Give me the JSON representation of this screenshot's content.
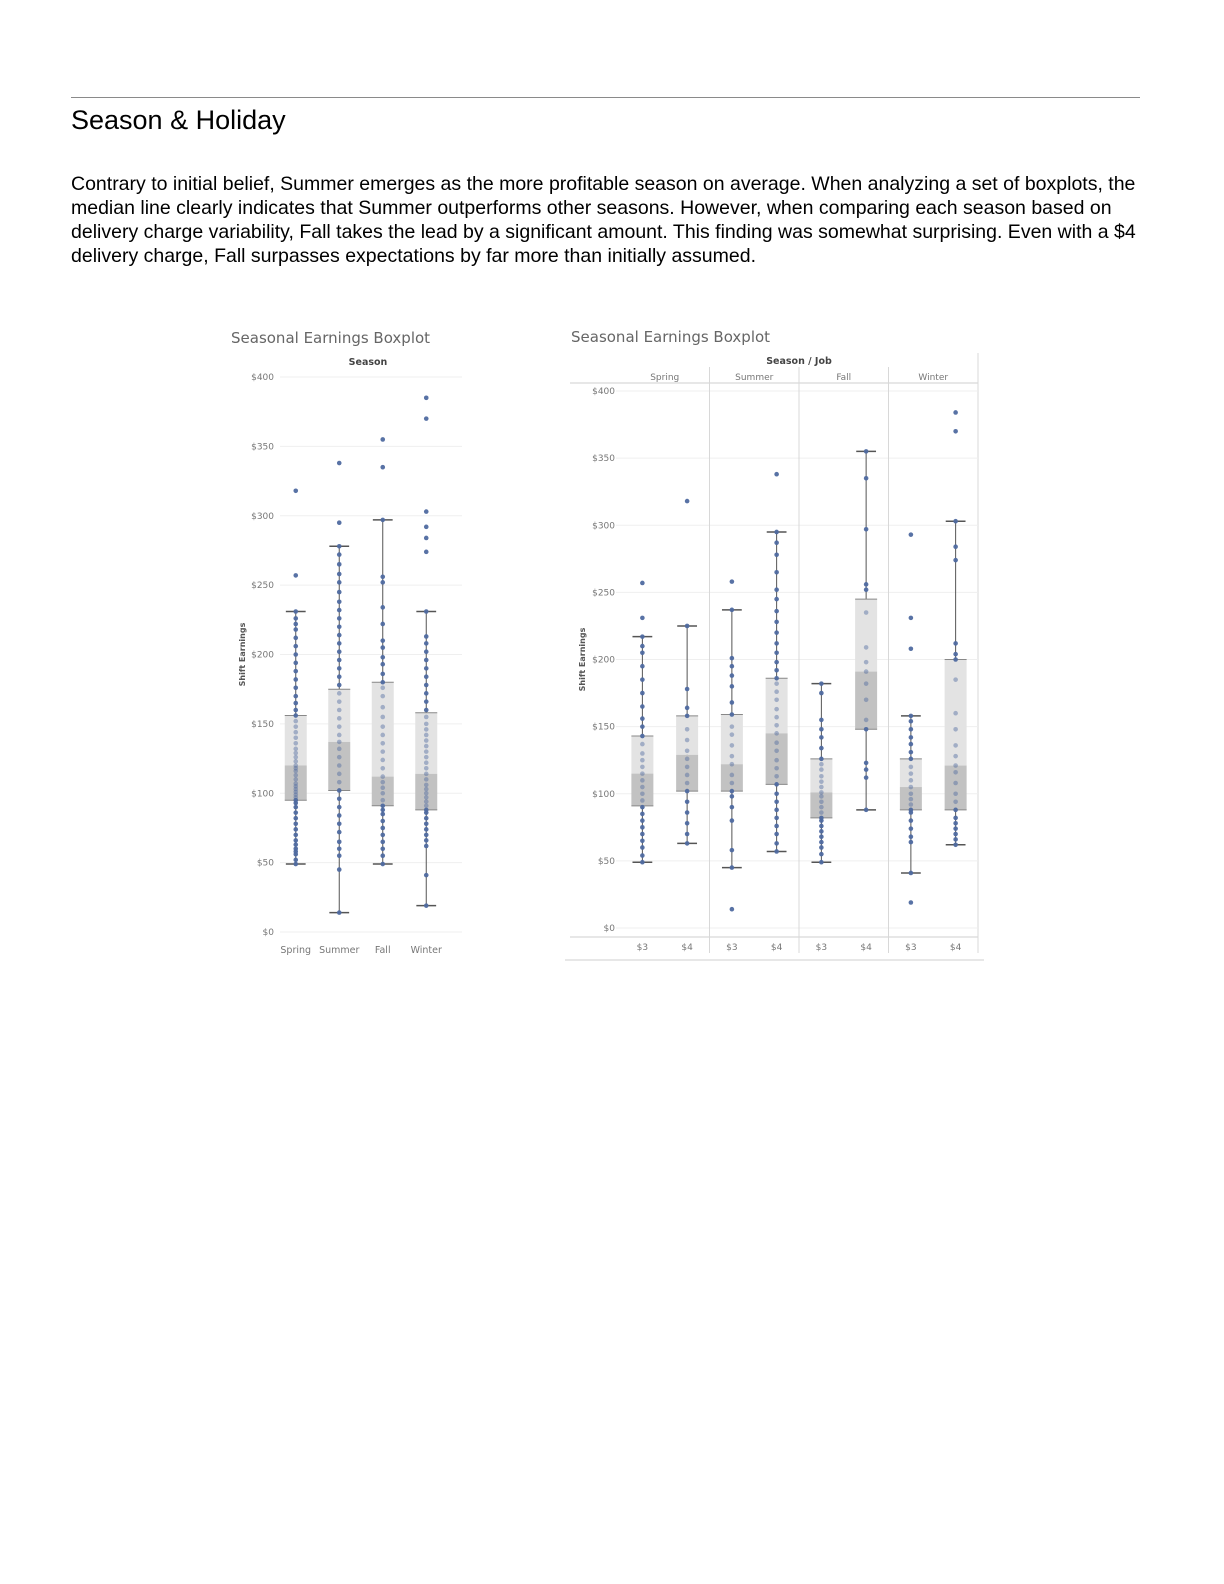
{
  "section": {
    "title": "Season & Holiday",
    "paragraph": "Contrary to initial belief, Summer emerges as the more profitable season on average. When analyzing a set of boxplots, the median line clearly indicates that Summer outperforms other seasons. However, when comparing each season based on delivery charge variability, Fall takes the lead by a significant amount. This finding was somewhat surprising. Even with a $4 delivery charge, Fall surpasses expectations by far more than initially assumed."
  },
  "colors": {
    "point": "#4f6aa0",
    "box_upper": "#e3e3e3",
    "box_lower": "#c2c2c2",
    "whisker": "#555555"
  },
  "chart_data": [
    {
      "type": "boxplot",
      "title": "Seasonal Earnings Boxplot",
      "column_header": "Season",
      "ylabel": "Shift Earnings",
      "ylim": [
        0,
        400
      ],
      "yticks": [
        "$0",
        "$50",
        "$100",
        "$150",
        "$200",
        "$250",
        "$300",
        "$350",
        "$400"
      ],
      "ytick_values": [
        0,
        50,
        100,
        150,
        200,
        250,
        300,
        350,
        400
      ],
      "categories": [
        "Spring",
        "Summer",
        "Fall",
        "Winter"
      ],
      "groups": [
        {
          "name": "Spring",
          "min": 49,
          "q1": 95,
          "median": 120,
          "q3": 156,
          "max": 231,
          "points": [
            49,
            52,
            56,
            58,
            60,
            63,
            66,
            70,
            74,
            78,
            82,
            86,
            90,
            93,
            95,
            97,
            99,
            101,
            103,
            105,
            107,
            110,
            113,
            116,
            118,
            120,
            123,
            126,
            129,
            132,
            136,
            140,
            144,
            148,
            152,
            156,
            160,
            165,
            170,
            176,
            182,
            188,
            194,
            200,
            206,
            212,
            218,
            222,
            226,
            231,
            257,
            318
          ]
        },
        {
          "name": "Summer",
          "min": 14,
          "q1": 102,
          "median": 137,
          "q3": 175,
          "max": 278,
          "points": [
            14,
            45,
            55,
            60,
            65,
            72,
            78,
            84,
            90,
            96,
            102,
            108,
            114,
            120,
            126,
            132,
            137,
            142,
            148,
            154,
            160,
            166,
            172,
            178,
            184,
            190,
            196,
            202,
            208,
            214,
            220,
            226,
            232,
            238,
            245,
            252,
            258,
            265,
            272,
            278,
            295,
            338
          ]
        },
        {
          "name": "Fall",
          "min": 49,
          "q1": 91,
          "median": 112,
          "q3": 180,
          "max": 297,
          "points": [
            49,
            55,
            60,
            65,
            70,
            75,
            80,
            85,
            88,
            91,
            95,
            100,
            104,
            108,
            112,
            118,
            124,
            130,
            136,
            142,
            148,
            155,
            162,
            170,
            176,
            180,
            186,
            193,
            198,
            205,
            210,
            222,
            234,
            252,
            256,
            297,
            335,
            355
          ]
        },
        {
          "name": "Winter",
          "min": 19,
          "q1": 88,
          "median": 114,
          "q3": 158,
          "max": 231,
          "points": [
            19,
            41,
            62,
            66,
            70,
            74,
            78,
            82,
            86,
            88,
            91,
            94,
            97,
            100,
            103,
            106,
            110,
            114,
            118,
            122,
            126,
            130,
            134,
            138,
            142,
            146,
            150,
            155,
            160,
            166,
            172,
            178,
            184,
            190,
            196,
            202,
            208,
            213,
            231,
            274,
            284,
            292,
            303,
            370,
            385
          ]
        }
      ]
    },
    {
      "type": "boxplot",
      "title": "Seasonal Earnings Boxplot",
      "column_header": "Season / Job",
      "ylabel": "Shift Earnings",
      "ylim": [
        0,
        400
      ],
      "yticks": [
        "$0",
        "$50",
        "$100",
        "$150",
        "$200",
        "$250",
        "$300",
        "$350",
        "$400"
      ],
      "ytick_values": [
        0,
        50,
        100,
        150,
        200,
        250,
        300,
        350,
        400
      ],
      "panels": [
        "Spring",
        "Summer",
        "Fall",
        "Winter"
      ],
      "categories": [
        "$3",
        "$4"
      ],
      "groups": [
        {
          "panel": "Spring",
          "job": "$3",
          "min": 49,
          "q1": 91,
          "median": 115,
          "q3": 143,
          "max": 217,
          "points": [
            49,
            54,
            60,
            65,
            70,
            75,
            80,
            85,
            90,
            95,
            100,
            105,
            110,
            115,
            120,
            125,
            130,
            137,
            143,
            150,
            156,
            165,
            175,
            185,
            195,
            205,
            210,
            217,
            231,
            257
          ]
        },
        {
          "panel": "Spring",
          "job": "$4",
          "min": 63,
          "q1": 102,
          "median": 129,
          "q3": 158,
          "max": 225,
          "points": [
            63,
            70,
            78,
            86,
            94,
            102,
            108,
            114,
            120,
            126,
            132,
            140,
            148,
            158,
            164,
            178,
            225,
            318
          ]
        },
        {
          "panel": "Summer",
          "job": "$3",
          "min": 45,
          "q1": 102,
          "median": 122,
          "q3": 159,
          "max": 237,
          "points": [
            14,
            45,
            58,
            80,
            90,
            98,
            102,
            108,
            114,
            122,
            128,
            136,
            144,
            150,
            159,
            168,
            180,
            188,
            195,
            201,
            237,
            258
          ]
        },
        {
          "panel": "Summer",
          "job": "$4",
          "min": 57,
          "q1": 107,
          "median": 145,
          "q3": 186,
          "max": 295,
          "points": [
            57,
            63,
            70,
            76,
            82,
            88,
            94,
            100,
            107,
            113,
            119,
            125,
            132,
            138,
            145,
            151,
            157,
            163,
            170,
            176,
            182,
            186,
            192,
            198,
            205,
            212,
            220,
            228,
            236,
            245,
            252,
            265,
            278,
            287,
            295,
            338
          ]
        },
        {
          "panel": "Fall",
          "job": "$3",
          "min": 49,
          "q1": 82,
          "median": 101,
          "q3": 126,
          "max": 182,
          "points": [
            49,
            55,
            60,
            64,
            68,
            72,
            76,
            80,
            82,
            86,
            90,
            94,
            98,
            101,
            105,
            109,
            113,
            118,
            122,
            126,
            134,
            142,
            148,
            155,
            175,
            182
          ]
        },
        {
          "panel": "Fall",
          "job": "$4",
          "min": 88,
          "q1": 148,
          "median": 191,
          "q3": 245,
          "max": 355,
          "points": [
            88,
            112,
            118,
            123,
            148,
            155,
            170,
            182,
            191,
            198,
            209,
            235,
            252,
            256,
            297,
            335,
            355
          ]
        },
        {
          "panel": "Fall",
          "job": "$4 ",
          "min": 0,
          "q1": 0,
          "median": 0,
          "q3": 0,
          "max": 0,
          "points": []
        },
        {
          "panel": "Winter",
          "job": "$3",
          "min": 41,
          "q1": 88,
          "median": 105,
          "q3": 126,
          "max": 158,
          "points": [
            19,
            41,
            64,
            68,
            74,
            80,
            86,
            88,
            92,
            96,
            100,
            105,
            110,
            115,
            120,
            126,
            131,
            137,
            142,
            148,
            154,
            158,
            208,
            231,
            293
          ]
        },
        {
          "panel": "Winter",
          "job": "$4",
          "min": 62,
          "q1": 88,
          "median": 121,
          "q3": 200,
          "max": 303,
          "points": [
            62,
            66,
            70,
            74,
            78,
            82,
            88,
            94,
            100,
            108,
            116,
            121,
            128,
            136,
            148,
            160,
            185,
            200,
            204,
            212,
            274,
            284,
            303,
            370,
            384
          ]
        }
      ]
    }
  ]
}
